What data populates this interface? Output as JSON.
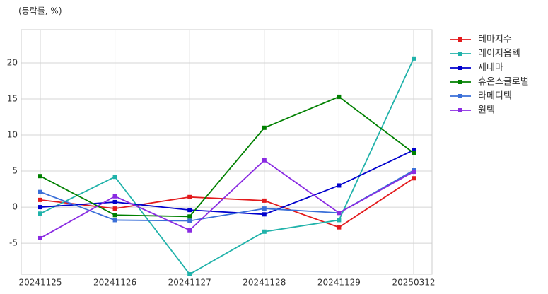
{
  "chart_data": {
    "type": "line",
    "y_label": "(등락률, %)",
    "categories": [
      "20241125",
      "20241126",
      "20241127",
      "20241128",
      "20241129",
      "20250312"
    ],
    "series": [
      {
        "name": "테마지수",
        "color": "#e31a1c",
        "values": [
          1.0,
          -0.2,
          1.4,
          0.9,
          -2.8,
          4.0
        ]
      },
      {
        "name": "레이저옵텍",
        "color": "#20b2aa",
        "values": [
          -0.9,
          4.2,
          -9.3,
          -3.4,
          -1.8,
          20.6
        ]
      },
      {
        "name": "제테마",
        "color": "#0000cd",
        "values": [
          0.0,
          0.7,
          -0.4,
          -1.0,
          3.0,
          7.9
        ]
      },
      {
        "name": "휴온스글로벌",
        "color": "#008000",
        "values": [
          4.3,
          -1.1,
          -1.3,
          11.0,
          15.3,
          7.5
        ]
      },
      {
        "name": "라메디텍",
        "color": "#3a6fd8",
        "values": [
          2.1,
          -1.8,
          -1.9,
          -0.2,
          -0.8,
          5.1
        ]
      },
      {
        "name": "원텍",
        "color": "#8a2be2",
        "values": [
          -4.3,
          1.5,
          -3.2,
          6.5,
          -0.8,
          4.9
        ]
      }
    ],
    "ylim": [
      -9.3,
      24.6
    ],
    "yticks": [
      -5,
      0,
      5,
      10,
      15,
      20
    ],
    "grid": true,
    "legend": "outside-right"
  }
}
